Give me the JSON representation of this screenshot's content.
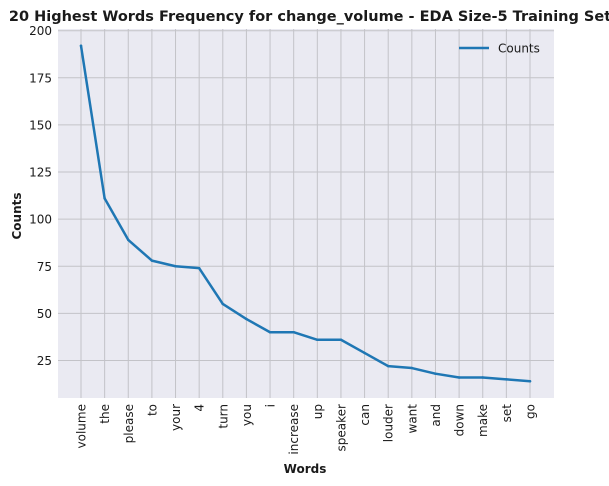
{
  "chart_data": {
    "type": "line",
    "title": "20 Highest Words Frequency for change_volume - EDA Size-5 Training Set",
    "xlabel": "Words",
    "ylabel": "Counts",
    "categories": [
      "volume",
      "the",
      "please",
      "to",
      "your",
      "4",
      "turn",
      "you",
      "i",
      "increase",
      "up",
      "speaker",
      "can",
      "louder",
      "want",
      "and",
      "down",
      "make",
      "set",
      "go"
    ],
    "series": [
      {
        "name": "Counts",
        "values": [
          192,
          111,
          89,
          78,
          75,
          74,
          55,
          47,
          40,
          40,
          36,
          36,
          29,
          22,
          21,
          18,
          16,
          16,
          15,
          14
        ],
        "color": "#1f77b4"
      }
    ],
    "ylim": [
      5.1,
      200.9
    ],
    "yticks": [
      25,
      50,
      75,
      100,
      125,
      150,
      175,
      200
    ],
    "grid": true,
    "legend": "top-right",
    "background": "#eaeaf2",
    "grid_color": "#c3c3c8"
  }
}
